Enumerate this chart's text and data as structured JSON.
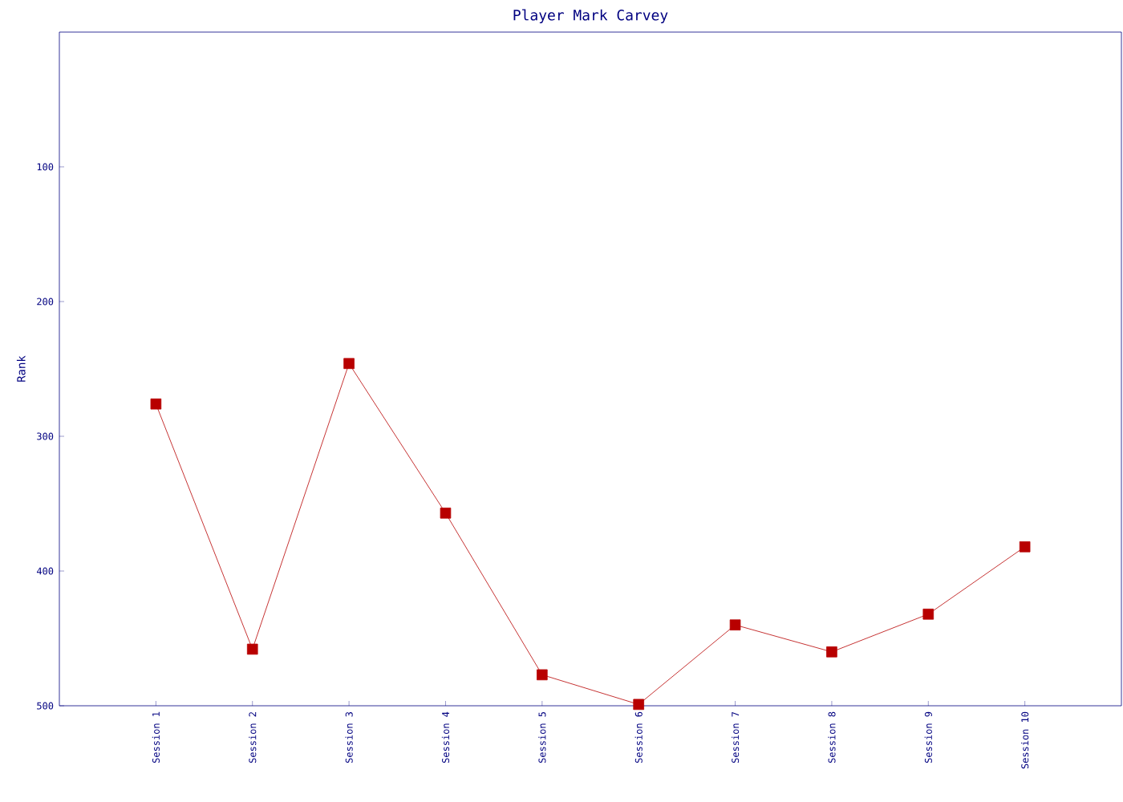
{
  "chart_data": {
    "type": "line",
    "title": "Player Mark Carvey",
    "ylabel": "Rank",
    "categories": [
      "Session 1",
      "Session 2",
      "Session 3",
      "Session 4",
      "Session 5",
      "Session 6",
      "Session 7",
      "Session 8",
      "Session 9",
      "Session 10"
    ],
    "series": [
      {
        "color": "#b80000",
        "values": [
          276,
          458,
          246,
          357,
          477,
          499,
          440,
          460,
          432,
          382
        ]
      }
    ],
    "ylim": [
      500,
      0
    ],
    "yticks": [
      100,
      200,
      300,
      400,
      500
    ],
    "marker": "square",
    "line_style": "solid",
    "grid": false,
    "legend": false
  }
}
